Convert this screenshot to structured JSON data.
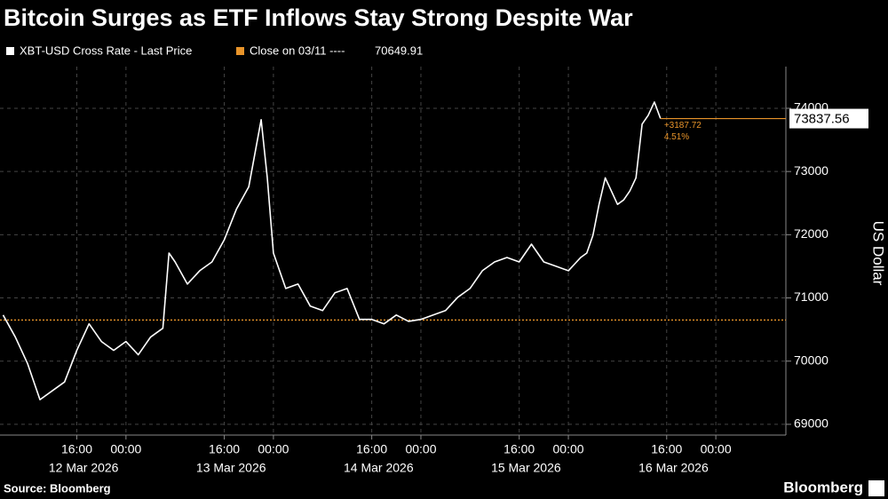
{
  "chart_data": {
    "type": "line",
    "title": "Bitcoin Surges as ETF Inflows Stay Strong Despite War",
    "source": "Source: Bloomberg",
    "brand": "Bloomberg",
    "y_label": "US Dollar",
    "reference": {
      "name": "Close on 03/11 ----",
      "value": 70649.91,
      "color": "#e8942a"
    },
    "annotations": [
      "+3187.72",
      "4.51%"
    ],
    "x": [
      4,
      6,
      8,
      10,
      12,
      14,
      16,
      18,
      20,
      22,
      24,
      26,
      28,
      29,
      30,
      31,
      32,
      34,
      36,
      38,
      40,
      42,
      44,
      46,
      47,
      48,
      50,
      52,
      54,
      56,
      58,
      60,
      62,
      64,
      66,
      68,
      70,
      72,
      74,
      76,
      78,
      80,
      82,
      84,
      86,
      88,
      90,
      92,
      94,
      96,
      98,
      99,
      100,
      101,
      102,
      103,
      104,
      105,
      106,
      107,
      108,
      109,
      110,
      111
    ],
    "series": [
      {
        "name": "XBT-USD Cross Rate - Last Price",
        "color": "#ffffff",
        "values": [
          70730,
          70380,
          69960,
          69390,
          69530,
          69670,
          70170,
          70590,
          70310,
          70170,
          70310,
          70100,
          70380,
          70450,
          70520,
          71710,
          71570,
          71220,
          71430,
          71570,
          71920,
          72410,
          72760,
          73820,
          72900,
          71710,
          71150,
          71220,
          70870,
          70800,
          71080,
          71150,
          70660,
          70660,
          70590,
          70730,
          70630,
          70660,
          70730,
          70800,
          71010,
          71150,
          71430,
          71570,
          71640,
          71570,
          71850,
          71570,
          71500,
          71430,
          71640,
          71710,
          71990,
          72480,
          72900,
          72690,
          72480,
          72550,
          72690,
          72900,
          73750,
          73890,
          74100,
          73837.56
        ]
      }
    ],
    "xlim": [
      3.5,
      131.4
    ],
    "xticks": [
      {
        "value": 16,
        "label": "16:00"
      },
      {
        "value": 24,
        "label": "00:00"
      },
      {
        "value": 40,
        "label": "16:00"
      },
      {
        "value": 48,
        "label": "00:00"
      },
      {
        "value": 64,
        "label": "16:00"
      },
      {
        "value": 72,
        "label": "00:00"
      },
      {
        "value": 88,
        "label": "16:00"
      },
      {
        "value": 96,
        "label": "00:00"
      },
      {
        "value": 112,
        "label": "16:00"
      },
      {
        "value": 120,
        "label": "00:00"
      }
    ],
    "date_labels": [
      "12 Mar 2026",
      "13 Mar 2026",
      "14 Mar 2026",
      "15 Mar 2026",
      "16 Mar 2026"
    ],
    "ylim": [
      68830,
      74660
    ],
    "yticks": [
      69000,
      70000,
      71000,
      72000,
      73000,
      74000
    ],
    "grid": true
  }
}
